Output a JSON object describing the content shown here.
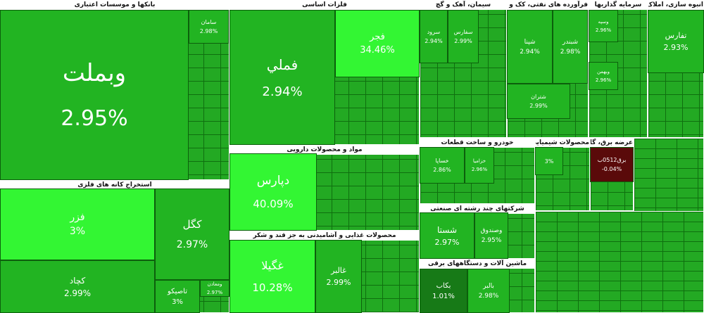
{
  "sectors": [
    {
      "title": "بانکها و موسسات اعتباری",
      "tiles": [
        {
          "name": "وبملت",
          "change": "2.95%"
        },
        {
          "name": "سامان",
          "change": "2.98%"
        }
      ]
    },
    {
      "title": "استخراج کانه های فلزی",
      "tiles": [
        {
          "name": "فزر",
          "change": "3%"
        },
        {
          "name": "کگل",
          "change": "2.97%"
        },
        {
          "name": "کچاد",
          "change": "2.99%"
        },
        {
          "name": "تاصیکو",
          "change": "3%"
        },
        {
          "name": "ومعادن",
          "change": "2.97%"
        }
      ]
    },
    {
      "title": "فلزات اساسی",
      "tiles": [
        {
          "name": "فملي",
          "change": "2.94%"
        },
        {
          "name": "فجر",
          "change": "34.46%"
        }
      ]
    },
    {
      "title": "مواد و محصولات دارویی",
      "tiles": [
        {
          "name": "دپارس",
          "change": "40.09%"
        }
      ]
    },
    {
      "title": "محصولات غذایی و آشامیدنی به جز قند و شکر",
      "tiles": [
        {
          "name": "غگیلا",
          "change": "10.28%"
        },
        {
          "name": "غالبر",
          "change": "2.99%"
        }
      ]
    },
    {
      "title": "سیمان، آهک و گچ",
      "tiles": [
        {
          "name": "سرود",
          "change": "2.94%"
        },
        {
          "name": "سفارس",
          "change": "2.99%"
        }
      ]
    },
    {
      "title": "فرآورده های نفتی، کک و سوخت هسته ای",
      "tiles": [
        {
          "name": "شپنا",
          "change": "2.94%"
        },
        {
          "name": "شبندر",
          "change": "2.98%"
        },
        {
          "name": "شتران",
          "change": "2.99%"
        }
      ]
    },
    {
      "title": "سرمایه گذاریها",
      "tiles": [
        {
          "name": "وسپه",
          "change": "2.96%"
        },
        {
          "name": "وبهمن",
          "change": "2.96%"
        }
      ]
    },
    {
      "title": "انبوه سازی، املاک و مستغلات",
      "tiles": [
        {
          "name": "تفارس",
          "change": "2.93%"
        }
      ]
    },
    {
      "title": "خودرو و ساخت قطعات",
      "tiles": [
        {
          "name": "خساپا",
          "change": "2.86%"
        },
        {
          "name": "خزامیا",
          "change": "2.96%"
        }
      ]
    },
    {
      "title": "شرکتهای چند رشته ای صنعتی",
      "tiles": [
        {
          "name": "شستا",
          "change": "2.97%"
        },
        {
          "name": "وصندوق",
          "change": "2.95%"
        }
      ]
    },
    {
      "title": "ماشین آلات و دستگاههای برقی",
      "tiles": [
        {
          "name": "بکاب",
          "change": "1.01%"
        },
        {
          "name": "بالبر",
          "change": "2.98%"
        }
      ]
    },
    {
      "title": "محصولات شیمیایی",
      "tiles": [
        {
          "change": "3%"
        }
      ]
    },
    {
      "title": "عرضه برق، گاز، بخاروآب گرم",
      "tiles": [
        {
          "name": "برق0512ب",
          "change": "-0.04%"
        }
      ]
    }
  ]
}
